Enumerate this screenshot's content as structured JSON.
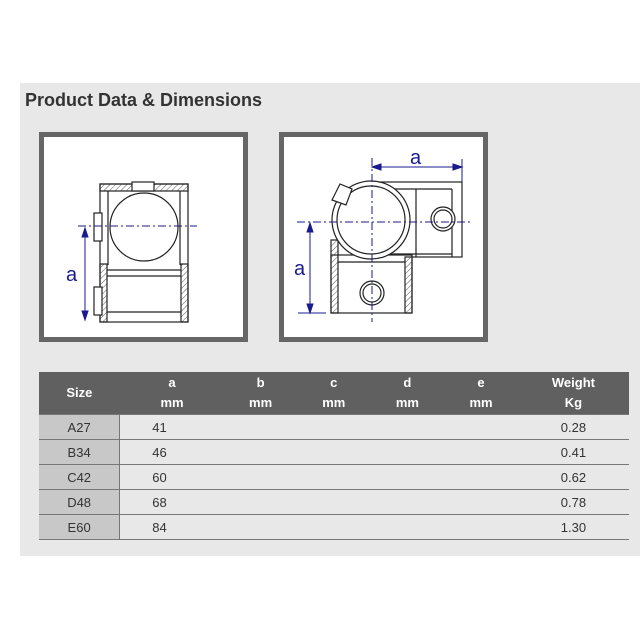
{
  "title": "Product Data & Dimensions",
  "drawings": [
    {
      "dimension_labels": [
        "a"
      ]
    },
    {
      "dimension_labels": [
        "a",
        "a"
      ]
    }
  ],
  "colors": {
    "dimension_line": "#1a1a8c",
    "header_bg": "#606060",
    "size_col_bg": "#c8c8c8"
  },
  "table": {
    "headers": [
      {
        "line1": "Size",
        "line2": ""
      },
      {
        "line1": "a",
        "line2": "mm"
      },
      {
        "line1": "b",
        "line2": "mm"
      },
      {
        "line1": "c",
        "line2": "mm"
      },
      {
        "line1": "d",
        "line2": "mm"
      },
      {
        "line1": "e",
        "line2": "mm"
      },
      {
        "line1": "Weight",
        "line2": "Kg"
      }
    ],
    "rows": [
      {
        "size": "A27",
        "a": "41",
        "b": "",
        "c": "",
        "d": "",
        "e": "",
        "weight": "0.28"
      },
      {
        "size": "B34",
        "a": "46",
        "b": "",
        "c": "",
        "d": "",
        "e": "",
        "weight": "0.41"
      },
      {
        "size": "C42",
        "a": "60",
        "b": "",
        "c": "",
        "d": "",
        "e": "",
        "weight": "0.62"
      },
      {
        "size": "D48",
        "a": "68",
        "b": "",
        "c": "",
        "d": "",
        "e": "",
        "weight": "0.78"
      },
      {
        "size": "E60",
        "a": "84",
        "b": "",
        "c": "",
        "d": "",
        "e": "",
        "weight": "1.30"
      }
    ]
  }
}
